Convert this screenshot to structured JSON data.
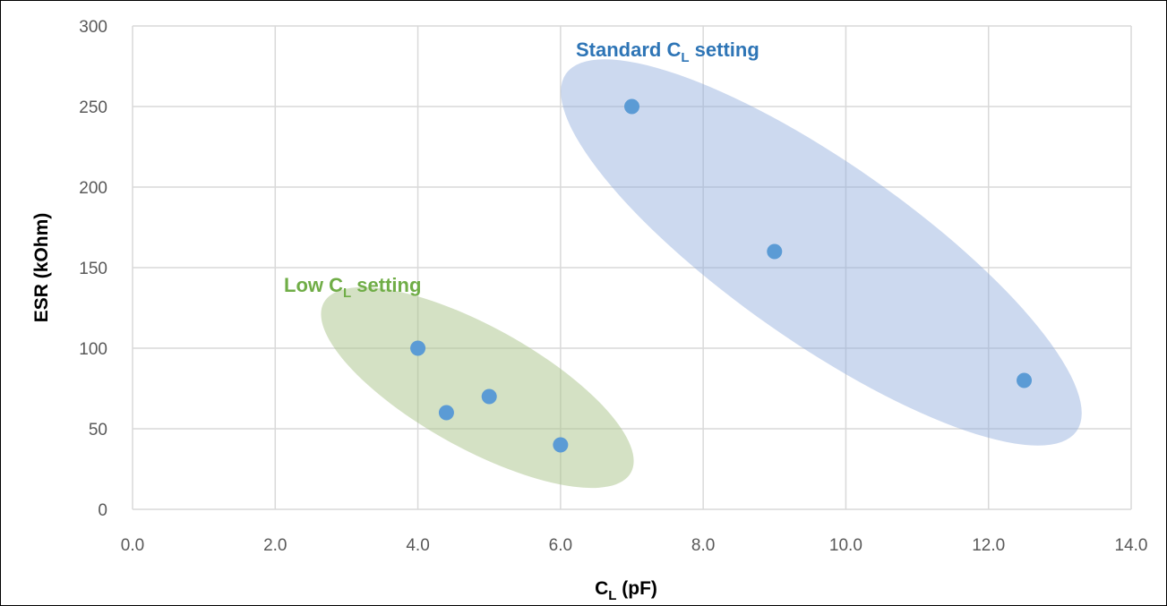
{
  "chart_data": {
    "type": "scatter",
    "xlabel": "C",
    "xlabel_subscript": "L",
    "xlabel_unit": " (pF)",
    "ylabel": "ESR (kOhm)",
    "xlim": [
      0,
      14
    ],
    "ylim": [
      0,
      300
    ],
    "x_ticks": [
      "0.0",
      "2.0",
      "4.0",
      "6.0",
      "8.0",
      "10.0",
      "12.0",
      "14.0"
    ],
    "y_ticks": [
      "0",
      "50",
      "100",
      "150",
      "200",
      "250",
      "300"
    ],
    "grid": true,
    "marker_color": "#5b9bd5",
    "points": [
      {
        "x": 4.0,
        "y": 100
      },
      {
        "x": 4.4,
        "y": 60
      },
      {
        "x": 5.0,
        "y": 70
      },
      {
        "x": 6.0,
        "y": 40
      },
      {
        "x": 7.0,
        "y": 250
      },
      {
        "x": 9.0,
        "y": 160
      },
      {
        "x": 12.5,
        "y": 80
      }
    ],
    "annotations": [
      {
        "name": "low",
        "text_before": "Low C",
        "text_subscript": "L",
        "text_after": " setting",
        "text_color": "#70ad47",
        "fill_color": "#a9c48a"
      },
      {
        "name": "standard",
        "text_before": "Standard C",
        "text_subscript": "L",
        "text_after": " setting",
        "text_color": "#2e75b6",
        "fill_color": "#8faadc"
      }
    ]
  }
}
